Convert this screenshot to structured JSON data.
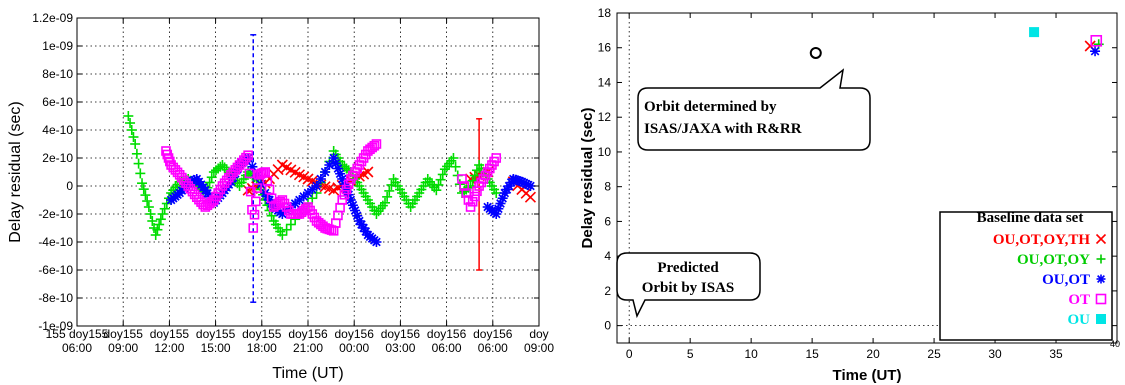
{
  "chart_data": [
    {
      "type": "scatter",
      "ylabel": "Delay residual (sec)",
      "xlabel": "Time (UT)",
      "ylim": [
        -1e-09,
        1.2e-09
      ],
      "xlim": [
        0,
        27
      ],
      "yticks": [
        "1.2e-09",
        "1e-09",
        "8e-10",
        "6e-10",
        "4e-10",
        "2e-10",
        "0",
        "-2e-10",
        "-4e-10",
        "-6e-10",
        "-8e-10",
        "-1e-09"
      ],
      "xticks_top": [
        "155 doy155",
        "doy155",
        "doy155",
        "doy155",
        "doy155",
        "doy156",
        "doy156",
        "doy156",
        "doy156",
        "doy156",
        "doy"
      ],
      "xticks_bottom": [
        "06:00",
        "09:00",
        "12:00",
        "15:00",
        "18:00",
        "21:00",
        "00:00",
        "03:00",
        "06:00",
        "06:00",
        "09:00"
      ],
      "grid": true,
      "series": [
        {
          "color": "#ff0000",
          "marker": "x",
          "points": [
            [
              10.0,
              -3e-11
            ],
            [
              11,
              2e-11
            ],
            [
              12,
              1.5e-10
            ],
            [
              13,
              8e-11
            ],
            [
              14,
              2e-11
            ],
            [
              15,
              -3e-11
            ],
            [
              16,
              4e-11
            ],
            [
              17,
              1e-10
            ],
            [
              23,
              5e-11
            ],
            [
              24,
              1e-10
            ],
            [
              25.5,
              3e-11
            ],
            [
              26.5,
              -8e-11
            ]
          ]
        },
        {
          "color": "#00dd00",
          "marker": "+",
          "points": [
            [
              3,
              5e-10
            ],
            [
              3.4,
              3e-10
            ],
            [
              3.8,
              2e-11
            ],
            [
              4.2,
              -1.5e-10
            ],
            [
              4.6,
              -3.5e-10
            ],
            [
              5,
              -2e-10
            ],
            [
              5.5,
              -5e-11
            ],
            [
              6,
              3e-11
            ],
            [
              6.5,
              5e-11
            ],
            [
              7,
              0.0
            ],
            [
              7.5,
              -5e-11
            ],
            [
              8,
              1e-10
            ],
            [
              8.5,
              1.5e-10
            ],
            [
              9,
              8e-11
            ],
            [
              9.5,
              0.0
            ],
            [
              10,
              1e-10
            ],
            [
              10.5,
              5e-11
            ],
            [
              11,
              -1e-10
            ],
            [
              11.5,
              -2.5e-10
            ],
            [
              12,
              -3.5e-10
            ],
            [
              13,
              -2e-10
            ],
            [
              14,
              -5e-11
            ],
            [
              15,
              2.5e-10
            ],
            [
              15.5,
              1.5e-10
            ],
            [
              16,
              1e-10
            ],
            [
              16.5,
              0.0
            ],
            [
              17,
              -1e-10
            ],
            [
              17.5,
              -2e-10
            ],
            [
              18,
              -1.2e-10
            ],
            [
              18.5,
              5e-11
            ],
            [
              19,
              -5e-11
            ],
            [
              19.5,
              -1.5e-10
            ],
            [
              20,
              -5e-11
            ],
            [
              20.5,
              5e-11
            ],
            [
              21,
              -3e-11
            ],
            [
              21.5,
              1.2e-10
            ],
            [
              22,
              2e-10
            ],
            [
              22.5,
              -5e-11
            ],
            [
              23,
              0.0
            ],
            [
              23.5,
              1.5e-10
            ],
            [
              24,
              5e-11
            ],
            [
              24.5,
              -5e-11
            ]
          ]
        },
        {
          "color": "#0000ff",
          "marker": "*",
          "points": [
            [
              5.5,
              -1e-10
            ],
            [
              6,
              -5e-11
            ],
            [
              6.5,
              2e-11
            ],
            [
              7,
              5e-11
            ],
            [
              7.5,
              -3e-11
            ],
            [
              8,
              -1.2e-10
            ],
            [
              8.5,
              -5e-11
            ],
            [
              9,
              3e-11
            ],
            [
              9.5,
              1.5e-10
            ],
            [
              10,
              2e-10
            ],
            [
              11,
              -5e-11
            ],
            [
              11.5,
              -1.5e-10
            ],
            [
              12,
              -2e-10
            ],
            [
              13,
              -1e-10
            ],
            [
              14,
              0.0
            ],
            [
              15,
              2e-10
            ],
            [
              15.5,
              5e-11
            ],
            [
              16,
              -1e-10
            ],
            [
              16.5,
              -2.5e-10
            ],
            [
              17,
              -3.5e-10
            ],
            [
              17.5,
              -4e-10
            ],
            [
              24,
              -1.5e-10
            ],
            [
              24.5,
              -2e-10
            ],
            [
              25,
              -5e-11
            ],
            [
              25.5,
              5e-11
            ],
            [
              26,
              3e-11
            ],
            [
              26.5,
              0.0
            ]
          ]
        },
        {
          "color": "#ff00ff",
          "marker": "square",
          "points": [
            [
              5.2,
              2.5e-10
            ],
            [
              5.5,
              1.5e-10
            ],
            [
              6,
              8e-11
            ],
            [
              6.5,
              0.0
            ],
            [
              7,
              -8e-11
            ],
            [
              7.5,
              -1.5e-10
            ],
            [
              8,
              -1e-10
            ],
            [
              8.5,
              0.0
            ],
            [
              9,
              8e-11
            ],
            [
              9.5,
              1.5e-10
            ],
            [
              10,
              2.2e-10
            ],
            [
              10.3,
              -3e-10
            ],
            [
              10.6,
              8e-11
            ],
            [
              11,
              1e-10
            ],
            [
              11.5,
              -1.5e-10
            ],
            [
              12,
              -1e-10
            ],
            [
              12.5,
              -2e-10
            ],
            [
              13,
              -2e-10
            ],
            [
              13.5,
              -1.5e-10
            ],
            [
              14,
              -2.5e-10
            ],
            [
              14.5,
              -3e-10
            ],
            [
              15,
              -3.2e-10
            ],
            [
              15.5,
              -1e-10
            ],
            [
              16,
              5e-11
            ],
            [
              16.5,
              1.5e-10
            ],
            [
              17,
              2.5e-10
            ],
            [
              17.5,
              3e-10
            ],
            [
              22.5,
              5e-11
            ],
            [
              23,
              -1.5e-10
            ],
            [
              23.5,
              0.0
            ],
            [
              24,
              1e-10
            ],
            [
              24.5,
              2e-10
            ]
          ]
        }
      ],
      "errorbars": [
        {
          "color": "#0000ff",
          "dashed": true,
          "x": 10.3,
          "ylow": -8.3e-10,
          "yhigh": 1.08e-09
        },
        {
          "color": "#ff0000",
          "dashed": false,
          "x": 23.5,
          "ylow": -6e-10,
          "yhigh": 4.8e-10
        }
      ]
    },
    {
      "type": "scatter",
      "ylabel": "Delay residual (sec)",
      "xlabel": "Time (UT)",
      "xlim": [
        -1,
        40
      ],
      "ylim": [
        -1,
        18
      ],
      "xticks": [
        "0",
        "5",
        "10",
        "15",
        "20",
        "25",
        "30",
        "35",
        "40"
      ],
      "yticks": [
        "0",
        "2",
        "4",
        "6",
        "8",
        "10",
        "12",
        "14",
        "16",
        "18"
      ],
      "annotations": [
        {
          "lines": [
            "Orbit determined by",
            "ISAS/JAXA with R&RR"
          ]
        },
        {
          "lines": [
            "Predicted",
            "Orbit by ISAS"
          ]
        }
      ],
      "points": [
        {
          "x": 15.3,
          "y": 15.7,
          "marker": "circle",
          "color": "#000000"
        },
        {
          "x": 38.0,
          "y": -0.4,
          "marker": "circle",
          "color": "#e8e800"
        },
        {
          "x": 33.2,
          "y": 16.9,
          "marker": "filled-square",
          "color": "#00e5e5"
        },
        {
          "x": 37.8,
          "y": 16.1,
          "marker": "x",
          "color": "#ff0000"
        },
        {
          "x": 38.5,
          "y": 16.2,
          "marker": "+",
          "color": "#00cc00"
        },
        {
          "x": 38.2,
          "y": 15.8,
          "marker": "*",
          "color": "#0000ff"
        },
        {
          "x": 38.3,
          "y": 16.4,
          "marker": "square",
          "color": "#ff00ff"
        }
      ],
      "legend": {
        "title": "Baseline data set",
        "placement": "bottom-right",
        "entries": [
          {
            "label": "OU,OT,OY,TH",
            "color": "#ff0000",
            "marker": "x"
          },
          {
            "label": "OU,OT,OY",
            "color": "#00cc00",
            "marker": "+"
          },
          {
            "label": "OU,OT",
            "color": "#0000ff",
            "marker": "*"
          },
          {
            "label": "OT",
            "color": "#ff00ff",
            "marker": "square"
          },
          {
            "label": "OU",
            "color": "#00e5e5",
            "marker": "filled-square"
          }
        ]
      }
    }
  ]
}
